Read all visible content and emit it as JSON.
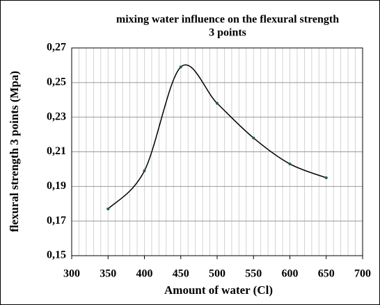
{
  "chart_data": {
    "type": "line",
    "title": [
      "mixing water influence on the flexural strength",
      "3 points"
    ],
    "x_label": "Amount of water (Cl)",
    "y_label": "flexural strength 3 points (Mpa)",
    "x": [
      350,
      400,
      450,
      500,
      550,
      600,
      650
    ],
    "series": [
      {
        "name": "flexural strength",
        "color": "#000000",
        "marker_color": "#1f5f3a",
        "values": [
          0.177,
          0.199,
          0.259,
          0.238,
          0.218,
          0.203,
          0.195
        ]
      }
    ],
    "smooth": true,
    "xlim": [
      300,
      700
    ],
    "xticks": [
      300,
      350,
      400,
      450,
      500,
      550,
      600,
      650,
      700
    ],
    "ylim": [
      0.15,
      0.27
    ],
    "yticks": [
      {
        "value": 0.15,
        "label": "0,15"
      },
      {
        "value": 0.17,
        "label": "0,17"
      },
      {
        "value": 0.19,
        "label": "0,19"
      },
      {
        "value": 0.21,
        "label": "0,21"
      },
      {
        "value": 0.23,
        "label": "0,23"
      },
      {
        "value": 0.25,
        "label": "0,25"
      },
      {
        "value": 0.27,
        "label": "0,27"
      }
    ],
    "grid": true,
    "x_minor_grid_step": 10
  }
}
